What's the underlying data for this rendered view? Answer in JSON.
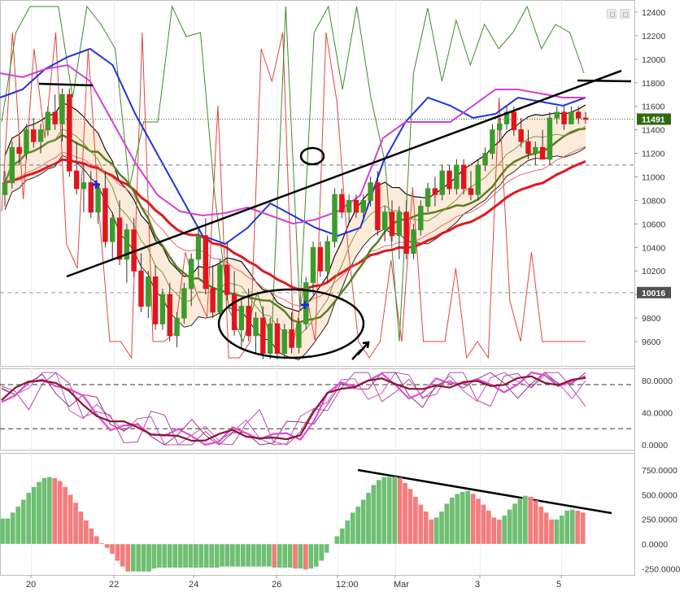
{
  "chart_data": [
    {
      "type": "candlestick",
      "panel": "price",
      "y_ticks": [
        "12400",
        "12200",
        "12000",
        "11800",
        "11600",
        "11400",
        "11200",
        "11000",
        "10800",
        "10600",
        "10400",
        "10200",
        "10000",
        "9800",
        "9600"
      ],
      "ylim": [
        9550,
        12450
      ],
      "last_price_label": "11491",
      "last_price": 11491,
      "marker_label": "10016",
      "marker_price": 10016,
      "dashed_levels": [
        11100
      ],
      "x_labels": [
        "20",
        "22",
        "24",
        "26",
        "12:00",
        "Mar",
        "3",
        "5"
      ],
      "candles": [
        [
          10850,
          11050,
          10750,
          10950
        ],
        [
          10950,
          11300,
          10900,
          11250
        ],
        [
          11250,
          11350,
          11100,
          11200
        ],
        [
          11200,
          11450,
          11150,
          11400
        ],
        [
          11400,
          11500,
          11250,
          11300
        ],
        [
          11300,
          11450,
          11200,
          11400
        ],
        [
          11400,
          11600,
          11350,
          11550
        ],
        [
          11550,
          11700,
          11400,
          11450
        ],
        [
          11450,
          11750,
          11300,
          11700
        ],
        [
          11700,
          11750,
          11000,
          11050
        ],
        [
          11050,
          11300,
          10850,
          10900
        ],
        [
          10900,
          11100,
          10700,
          10950
        ],
        [
          10950,
          11050,
          10650,
          10700
        ],
        [
          10700,
          10950,
          10600,
          10900
        ],
        [
          10900,
          11050,
          10400,
          10450
        ],
        [
          10450,
          10700,
          10300,
          10650
        ],
        [
          10650,
          10800,
          10250,
          10300
        ],
        [
          10300,
          10600,
          10100,
          10550
        ],
        [
          10550,
          10650,
          10150,
          10200
        ],
        [
          10200,
          10350,
          9850,
          9900
        ],
        [
          9900,
          10200,
          9800,
          10150
        ],
        [
          10150,
          10250,
          9700,
          9750
        ],
        [
          9750,
          10050,
          9700,
          10000
        ],
        [
          10000,
          10100,
          9600,
          9650
        ],
        [
          9650,
          9850,
          9550,
          9800
        ],
        [
          9800,
          10100,
          9750,
          10050
        ],
        [
          10050,
          10350,
          9900,
          10300
        ],
        [
          10300,
          10550,
          10150,
          10500
        ],
        [
          10500,
          10650,
          10000,
          10050
        ],
        [
          10050,
          10250,
          9800,
          9850
        ],
        [
          9850,
          10300,
          9800,
          10250
        ],
        [
          10250,
          10450,
          9950,
          10000
        ],
        [
          10000,
          10200,
          9650,
          9700
        ],
        [
          9700,
          9950,
          9550,
          9900
        ],
        [
          9900,
          10050,
          9600,
          9650
        ],
        [
          9650,
          9850,
          9500,
          9800
        ],
        [
          9800,
          9900,
          9450,
          9500
        ],
        [
          9500,
          9800,
          9450,
          9750
        ],
        [
          9750,
          9800,
          9450,
          9500
        ],
        [
          9500,
          9750,
          9450,
          9700
        ],
        [
          9700,
          9850,
          9500,
          9550
        ],
        [
          9550,
          9800,
          9500,
          9750
        ],
        [
          9750,
          10150,
          9700,
          10100
        ],
        [
          10100,
          10450,
          10000,
          10400
        ],
        [
          10400,
          10450,
          10150,
          10200
        ],
        [
          10200,
          10500,
          10100,
          10450
        ],
        [
          10450,
          10900,
          10400,
          10850
        ],
        [
          10850,
          10900,
          10650,
          10700
        ],
        [
          10700,
          10850,
          10600,
          10800
        ],
        [
          10800,
          10850,
          10650,
          10700
        ],
        [
          10700,
          10850,
          10650,
          10800
        ],
        [
          10800,
          11000,
          10750,
          10950
        ],
        [
          10950,
          11050,
          10500,
          10550
        ],
        [
          10550,
          10750,
          10450,
          10700
        ],
        [
          10700,
          10800,
          10450,
          10500
        ],
        [
          10500,
          10750,
          10300,
          10700
        ],
        [
          10700,
          10800,
          10300,
          10350
        ],
        [
          10350,
          10600,
          10300,
          10550
        ],
        [
          10550,
          10800,
          10500,
          10750
        ],
        [
          10750,
          10950,
          10700,
          10900
        ],
        [
          10900,
          11000,
          10750,
          10850
        ],
        [
          10850,
          11100,
          10800,
          11050
        ],
        [
          11050,
          11100,
          10850,
          10900
        ],
        [
          10900,
          11150,
          10850,
          11100
        ],
        [
          11100,
          11150,
          10850,
          10900
        ],
        [
          10900,
          11050,
          10800,
          10850
        ],
        [
          10850,
          11150,
          10800,
          11100
        ],
        [
          11100,
          11250,
          11050,
          11200
        ],
        [
          11200,
          11450,
          11150,
          11400
        ],
        [
          11400,
          11500,
          11300,
          11450
        ],
        [
          11450,
          11600,
          11400,
          11550
        ],
        [
          11550,
          11600,
          11350,
          11400
        ],
        [
          11400,
          11500,
          11250,
          11300
        ],
        [
          11300,
          11400,
          11150,
          11200
        ],
        [
          11200,
          11300,
          11100,
          11250
        ],
        [
          11250,
          11400,
          11150,
          11150
        ],
        [
          11150,
          11550,
          11100,
          11500
        ],
        [
          11500,
          11600,
          11450,
          11550
        ],
        [
          11550,
          11600,
          11400,
          11450
        ],
        [
          11450,
          11600,
          11450,
          11550
        ],
        [
          11550,
          11600,
          11450,
          11500
        ],
        [
          11500,
          11550,
          11450,
          11491
        ]
      ]
    },
    {
      "type": "line",
      "panel": "oscillator",
      "y_ticks": [
        "80.0000",
        "40.0000",
        "0.0000"
      ],
      "ylim": [
        -5,
        95
      ],
      "dashed_levels": [
        75,
        20
      ]
    },
    {
      "type": "bar",
      "panel": "histogram",
      "y_ticks": [
        "750.0000",
        "500.0000",
        "250.0000",
        "0.0000",
        "-250.0000"
      ],
      "ylim": [
        -280,
        820
      ],
      "values": [
        260,
        260,
        320,
        380,
        450,
        520,
        580,
        630,
        670,
        680,
        670,
        640,
        580,
        500,
        420,
        330,
        240,
        160,
        80,
        10,
        -40,
        -100,
        -170,
        -230,
        -280,
        -280,
        -280,
        -280,
        -280,
        -250,
        -240,
        -240,
        -240,
        -240,
        -240,
        -240,
        -240,
        -240,
        -240,
        -240,
        -240,
        -240,
        -230,
        -230,
        -230,
        -230,
        -230,
        -230,
        -230,
        -230,
        -230,
        -230,
        -240,
        -240,
        -240,
        -240,
        -250,
        -250,
        -260,
        -250,
        -230,
        -170,
        -90,
        0,
        80,
        160,
        240,
        320,
        380,
        450,
        520,
        600,
        650,
        680,
        680,
        680,
        670,
        620,
        560,
        480,
        400,
        330,
        250,
        270,
        330,
        410,
        470,
        510,
        530,
        540,
        510,
        460,
        400,
        340,
        270,
        250,
        290,
        350,
        410,
        460,
        490,
        480,
        440,
        380,
        320,
        250,
        250,
        290,
        340,
        350,
        340,
        320
      ]
    }
  ]
}
